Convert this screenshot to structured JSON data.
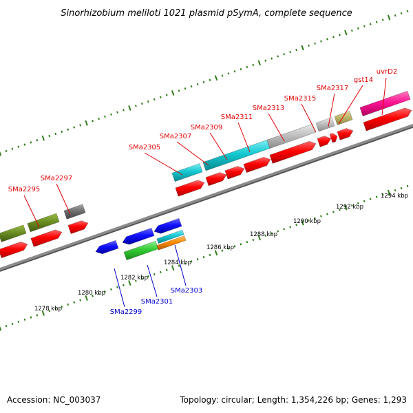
{
  "title": "Sinorhizobium meliloti 1021 plasmid pSymA, complete sequence",
  "footer": {
    "accession": "Accession: NC_003037",
    "summary": "Topology: circular; Length: 1,354,226 bp; Genes: 1,293"
  },
  "scale_labels": [
    "1278 kbp",
    "1280 kbp",
    "1282 kbp",
    "1284 kbp",
    "1286 kbp",
    "1288 kbp",
    "1290 kbp",
    "1292 kbp",
    "1294 kbp"
  ],
  "forward_labels": [
    "SMa2295",
    "SMa2297",
    "SMa2305",
    "SMa2307",
    "SMa2309",
    "SMa2311",
    "SMa2313",
    "SMa2315",
    "SMa2317",
    "gst14",
    "uvrD2"
  ],
  "reverse_labels": [
    "SMa2299",
    "SMa2301",
    "SMa2303"
  ],
  "colors": {
    "forward_label": "#e00000",
    "reverse_label": "#0000cc",
    "backbone": "#8c8c8c",
    "tick": "#2e7d18",
    "cds": "#ff0000",
    "olive": "#6b8e23",
    "teal": "#14c8d0",
    "gray": "#c0c0c0",
    "khaki": "#bdb76b",
    "magenta": "#ff1493",
    "blue": "#1010ff",
    "green": "#33cc33",
    "orange": "#ff8c00",
    "dark": "#707070"
  }
}
